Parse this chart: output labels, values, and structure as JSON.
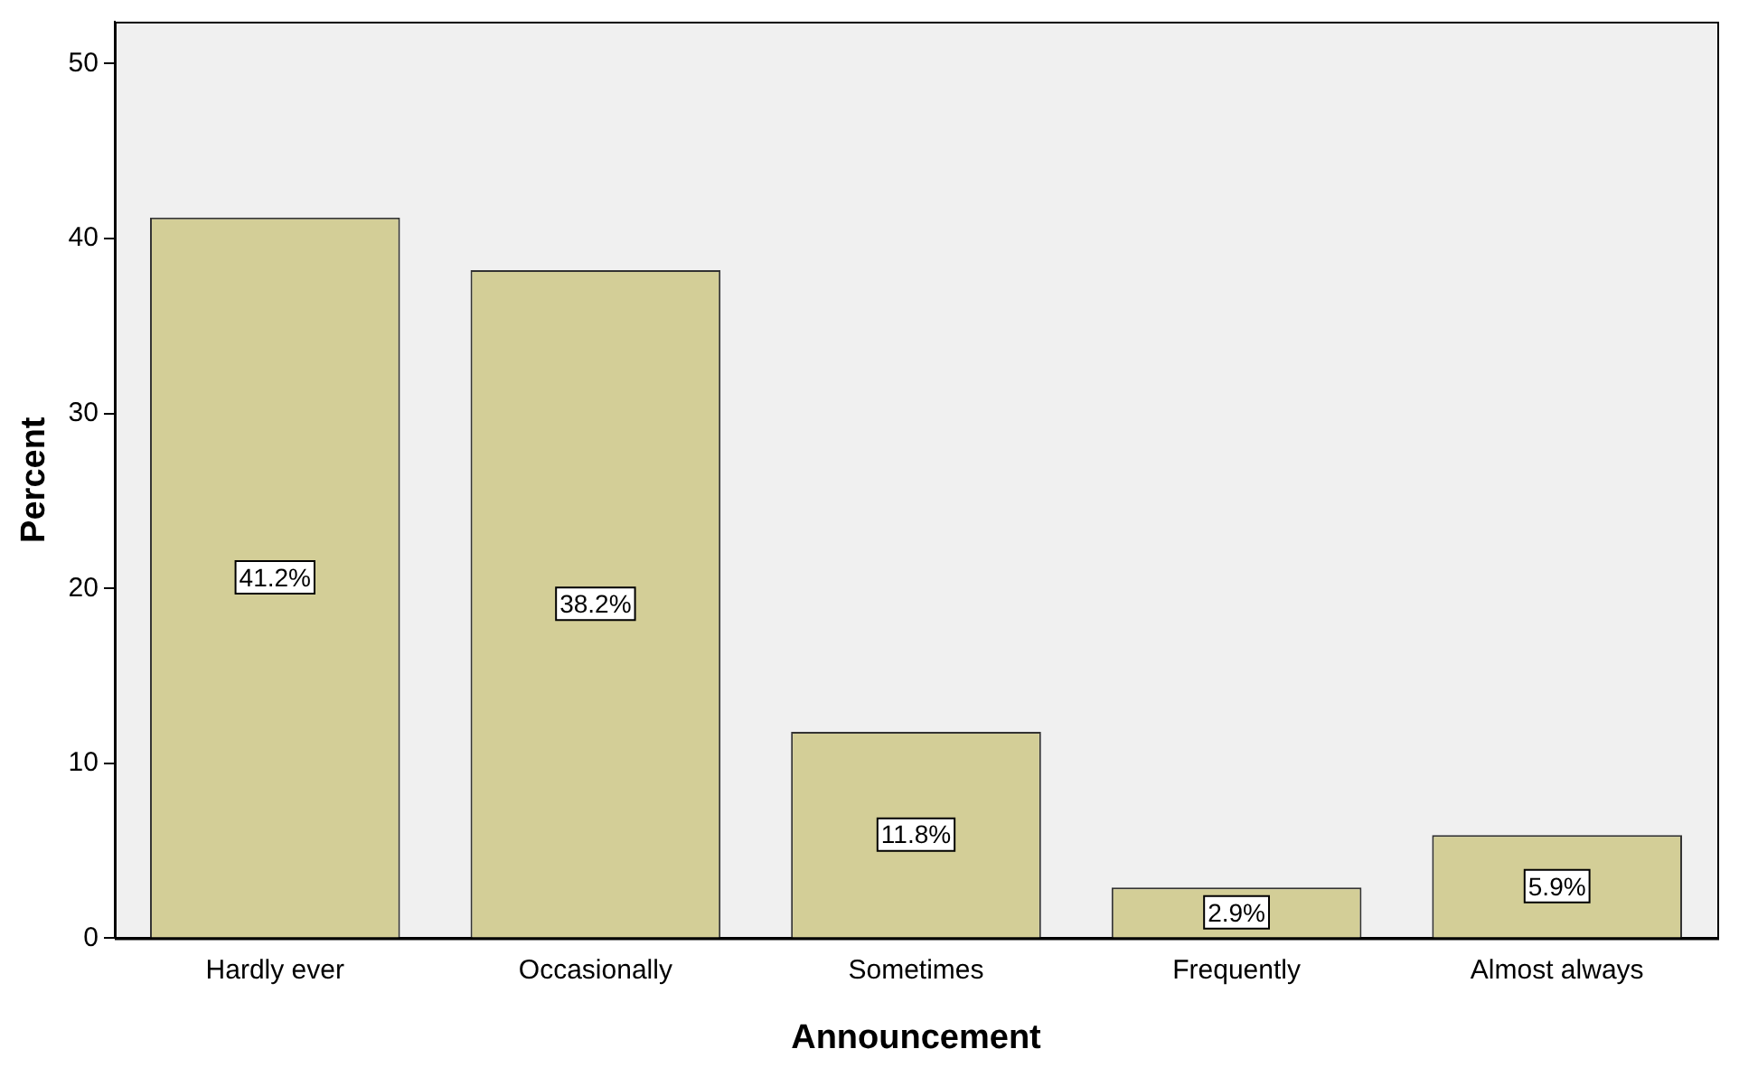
{
  "chart_data": {
    "type": "bar",
    "xlabel": "Announcement",
    "ylabel": "Percent",
    "categories": [
      "Hardly ever",
      "Occasionally",
      "Sometimes",
      "Frequently",
      "Almost always"
    ],
    "values": [
      41.2,
      38.2,
      11.8,
      2.9,
      5.9
    ],
    "value_labels": [
      "41.2%",
      "38.2%",
      "11.8%",
      "2.9%",
      "5.9%"
    ],
    "color": "#d3ce97",
    "ylim": [
      0,
      52.4
    ],
    "yticks": [
      0,
      10,
      20,
      30,
      40,
      50
    ],
    "grid": false,
    "legend": false
  }
}
